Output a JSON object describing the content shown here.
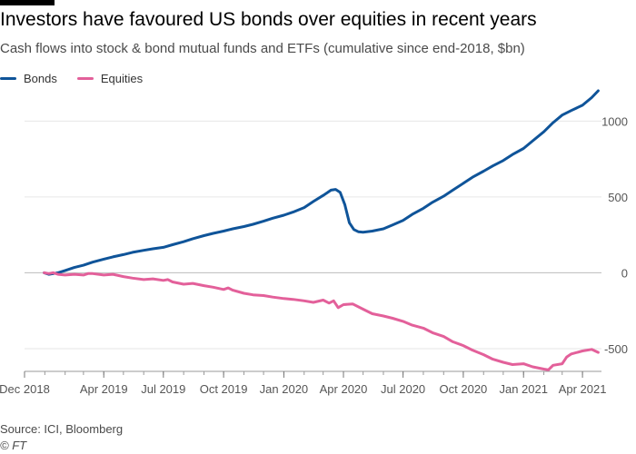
{
  "chart_data": {
    "type": "line",
    "title": "Investors have favoured US bonds over equities in recent years",
    "subtitle": "Cash flows into stock & bond mutual funds and ETFs (cumulative since end-2018, $bn)",
    "xlabel": "",
    "ylabel": "",
    "ylim": [
      -650,
      1200
    ],
    "yticks": [
      1000,
      500,
      0,
      -500
    ],
    "ytick_labels": [
      "1000",
      "500",
      "0",
      "-500"
    ],
    "xlim": [
      "2018-12-01",
      "2021-04-30"
    ],
    "xticks": [
      {
        "date": "2018-12-01",
        "label": "Dec 2018"
      },
      {
        "date": "2019-04-01",
        "label": "Apr 2019"
      },
      {
        "date": "2019-07-01",
        "label": "Jul 2019"
      },
      {
        "date": "2019-10-01",
        "label": "Oct 2019"
      },
      {
        "date": "2020-01-01",
        "label": "Jan 2020"
      },
      {
        "date": "2020-04-01",
        "label": "Apr 2020"
      },
      {
        "date": "2020-07-01",
        "label": "Jul 2020"
      },
      {
        "date": "2020-10-01",
        "label": "Oct 2020"
      },
      {
        "date": "2021-01-01",
        "label": "Jan 2021"
      },
      {
        "date": "2021-04-01",
        "label": "Apr 2021"
      }
    ],
    "grid": true,
    "legend_position": "top-left",
    "series": [
      {
        "name": "Bonds",
        "color": "#0f5499",
        "points": [
          [
            "2018-12-31",
            0
          ],
          [
            "2019-01-07",
            -10
          ],
          [
            "2019-01-14",
            -5
          ],
          [
            "2019-01-21",
            0
          ],
          [
            "2019-02-01",
            15
          ],
          [
            "2019-02-15",
            35
          ],
          [
            "2019-03-01",
            50
          ],
          [
            "2019-03-15",
            70
          ],
          [
            "2019-04-01",
            90
          ],
          [
            "2019-04-15",
            105
          ],
          [
            "2019-05-01",
            120
          ],
          [
            "2019-05-15",
            135
          ],
          [
            "2019-06-01",
            148
          ],
          [
            "2019-06-15",
            158
          ],
          [
            "2019-07-01",
            168
          ],
          [
            "2019-07-15",
            185
          ],
          [
            "2019-08-01",
            205
          ],
          [
            "2019-08-15",
            225
          ],
          [
            "2019-09-01",
            245
          ],
          [
            "2019-09-15",
            260
          ],
          [
            "2019-10-01",
            275
          ],
          [
            "2019-10-15",
            290
          ],
          [
            "2019-11-01",
            305
          ],
          [
            "2019-11-15",
            320
          ],
          [
            "2019-12-01",
            340
          ],
          [
            "2019-12-15",
            360
          ],
          [
            "2020-01-01",
            380
          ],
          [
            "2020-01-15",
            400
          ],
          [
            "2020-02-01",
            430
          ],
          [
            "2020-02-15",
            470
          ],
          [
            "2020-03-01",
            510
          ],
          [
            "2020-03-08",
            530
          ],
          [
            "2020-03-13",
            545
          ],
          [
            "2020-03-20",
            550
          ],
          [
            "2020-03-27",
            530
          ],
          [
            "2020-04-03",
            450
          ],
          [
            "2020-04-10",
            330
          ],
          [
            "2020-04-17",
            285
          ],
          [
            "2020-04-24",
            270
          ],
          [
            "2020-05-01",
            268
          ],
          [
            "2020-05-15",
            275
          ],
          [
            "2020-06-01",
            290
          ],
          [
            "2020-06-15",
            315
          ],
          [
            "2020-07-01",
            345
          ],
          [
            "2020-07-15",
            385
          ],
          [
            "2020-08-01",
            425
          ],
          [
            "2020-08-15",
            465
          ],
          [
            "2020-09-01",
            505
          ],
          [
            "2020-09-15",
            545
          ],
          [
            "2020-10-01",
            590
          ],
          [
            "2020-10-15",
            630
          ],
          [
            "2020-11-01",
            670
          ],
          [
            "2020-11-15",
            705
          ],
          [
            "2020-12-01",
            740
          ],
          [
            "2020-12-15",
            780
          ],
          [
            "2021-01-01",
            820
          ],
          [
            "2021-01-15",
            870
          ],
          [
            "2021-02-01",
            930
          ],
          [
            "2021-02-15",
            990
          ],
          [
            "2021-03-01",
            1040
          ],
          [
            "2021-03-15",
            1070
          ],
          [
            "2021-04-01",
            1105
          ],
          [
            "2021-04-15",
            1155
          ],
          [
            "2021-04-25",
            1200
          ]
        ]
      },
      {
        "name": "Equities",
        "color": "#e3609a",
        "points": [
          [
            "2018-12-31",
            0
          ],
          [
            "2019-01-07",
            -5
          ],
          [
            "2019-01-14",
            0
          ],
          [
            "2019-01-21",
            -10
          ],
          [
            "2019-02-01",
            -15
          ],
          [
            "2019-02-15",
            -10
          ],
          [
            "2019-03-01",
            -15
          ],
          [
            "2019-03-08",
            -5
          ],
          [
            "2019-03-15",
            -5
          ],
          [
            "2019-04-01",
            -15
          ],
          [
            "2019-04-15",
            -10
          ],
          [
            "2019-05-01",
            -25
          ],
          [
            "2019-05-15",
            -35
          ],
          [
            "2019-06-01",
            -45
          ],
          [
            "2019-06-15",
            -40
          ],
          [
            "2019-07-01",
            -50
          ],
          [
            "2019-07-08",
            -45
          ],
          [
            "2019-07-15",
            -60
          ],
          [
            "2019-08-01",
            -75
          ],
          [
            "2019-08-15",
            -70
          ],
          [
            "2019-09-01",
            -85
          ],
          [
            "2019-09-15",
            -95
          ],
          [
            "2019-10-01",
            -110
          ],
          [
            "2019-10-08",
            -100
          ],
          [
            "2019-10-15",
            -115
          ],
          [
            "2019-11-01",
            -135
          ],
          [
            "2019-11-15",
            -145
          ],
          [
            "2019-12-01",
            -150
          ],
          [
            "2019-12-15",
            -160
          ],
          [
            "2020-01-01",
            -170
          ],
          [
            "2020-01-15",
            -175
          ],
          [
            "2020-02-01",
            -185
          ],
          [
            "2020-02-15",
            -195
          ],
          [
            "2020-03-01",
            -180
          ],
          [
            "2020-03-10",
            -200
          ],
          [
            "2020-03-17",
            -185
          ],
          [
            "2020-03-24",
            -230
          ],
          [
            "2020-04-01",
            -210
          ],
          [
            "2020-04-15",
            -205
          ],
          [
            "2020-05-01",
            -240
          ],
          [
            "2020-05-15",
            -270
          ],
          [
            "2020-06-01",
            -285
          ],
          [
            "2020-06-15",
            -300
          ],
          [
            "2020-07-01",
            -320
          ],
          [
            "2020-07-15",
            -345
          ],
          [
            "2020-08-01",
            -365
          ],
          [
            "2020-08-15",
            -395
          ],
          [
            "2020-09-01",
            -420
          ],
          [
            "2020-09-15",
            -455
          ],
          [
            "2020-10-01",
            -480
          ],
          [
            "2020-10-15",
            -510
          ],
          [
            "2020-11-01",
            -540
          ],
          [
            "2020-11-15",
            -570
          ],
          [
            "2020-12-01",
            -590
          ],
          [
            "2020-12-15",
            -605
          ],
          [
            "2021-01-01",
            -600
          ],
          [
            "2021-01-15",
            -620
          ],
          [
            "2021-02-01",
            -635
          ],
          [
            "2021-02-08",
            -640
          ],
          [
            "2021-02-15",
            -610
          ],
          [
            "2021-03-01",
            -600
          ],
          [
            "2021-03-08",
            -555
          ],
          [
            "2021-03-15",
            -535
          ],
          [
            "2021-04-01",
            -515
          ],
          [
            "2021-04-15",
            -505
          ],
          [
            "2021-04-25",
            -525
          ]
        ]
      }
    ]
  },
  "footer": {
    "source": "Source: ICI, Bloomberg",
    "copyright": "© FT"
  }
}
